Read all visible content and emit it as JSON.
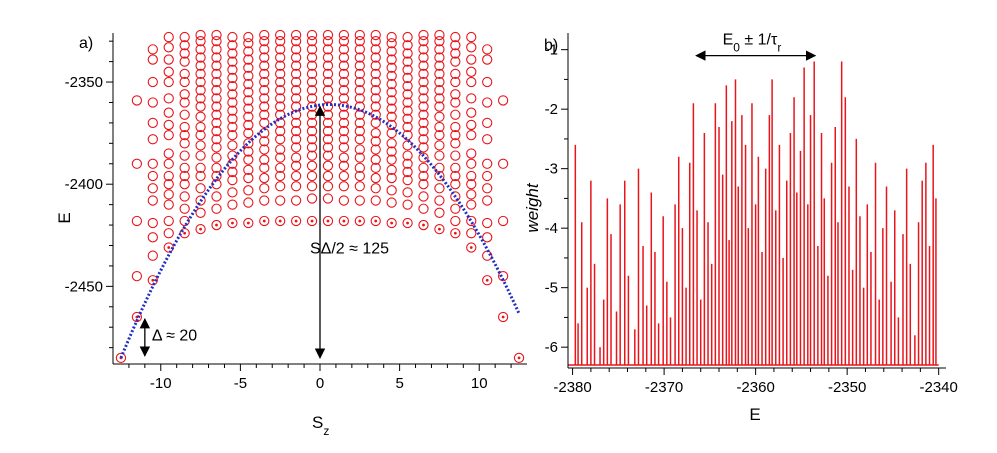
{
  "chart_data": [
    {
      "type": "scatter",
      "panel_label": "a)",
      "xlabel": "S",
      "xlabel_sub": "z",
      "ylabel": "E",
      "xlim": [
        -13,
        13
      ],
      "ylim": [
        -2488,
        -2326
      ],
      "xticks": [
        -10,
        -5,
        0,
        5,
        10
      ],
      "yticks": [
        -2350,
        -2400,
        -2450
      ],
      "grid": false,
      "colors": {
        "markers": "#e8151b",
        "curve": "#1f2fc4"
      },
      "ground_states": [
        {
          "Sz": -12.5,
          "E": -2485
        },
        {
          "Sz": -11.5,
          "E": -2465
        },
        {
          "Sz": -10.5,
          "E": -2447
        },
        {
          "Sz": -9.5,
          "E": -2431
        },
        {
          "Sz": -8.5,
          "E": -2424
        },
        {
          "Sz": -7.5,
          "E": -2422
        },
        {
          "Sz": -6.5,
          "E": -2420
        },
        {
          "Sz": -5.5,
          "E": -2419
        },
        {
          "Sz": -4.5,
          "E": -2419
        },
        {
          "Sz": -3.5,
          "E": -2418
        },
        {
          "Sz": -2.5,
          "E": -2418
        },
        {
          "Sz": -1.5,
          "E": -2418
        },
        {
          "Sz": -0.5,
          "E": -2418
        },
        {
          "Sz": 0.5,
          "E": -2418
        },
        {
          "Sz": 1.5,
          "E": -2418
        },
        {
          "Sz": 2.5,
          "E": -2418
        },
        {
          "Sz": 3.5,
          "E": -2418
        },
        {
          "Sz": 4.5,
          "E": -2419
        },
        {
          "Sz": 5.5,
          "E": -2419
        },
        {
          "Sz": 6.5,
          "E": -2420
        },
        {
          "Sz": 7.5,
          "E": -2422
        },
        {
          "Sz": 8.5,
          "E": -2424
        },
        {
          "Sz": 9.5,
          "E": -2431
        },
        {
          "Sz": 10.5,
          "E": -2447
        },
        {
          "Sz": 11.5,
          "E": -2465
        },
        {
          "Sz": 12.5,
          "E": -2485
        }
      ],
      "levels_per_column": [
        {
          "Sz": -12.5,
          "E": [
            -2485
          ]
        },
        {
          "Sz": -11.5,
          "E": [
            -2465,
            -2445,
            -2418,
            -2390,
            -2359
          ]
        },
        {
          "Sz": -10.5,
          "E": [
            -2447,
            -2435,
            -2426,
            -2419,
            -2408,
            -2402,
            -2396,
            -2390,
            -2378,
            -2370,
            -2360,
            -2350,
            -2339,
            -2334
          ]
        },
        {
          "Sz": -9.5,
          "E": [
            -2431,
            -2424,
            -2418,
            -2410,
            -2405,
            -2400,
            -2396,
            -2390,
            -2385,
            -2376,
            -2371,
            -2365,
            -2358,
            -2350,
            -2345,
            -2339,
            -2333,
            -2328
          ]
        },
        {
          "Sz": -8.5,
          "E": [
            -2424,
            -2418,
            -2412,
            -2406,
            -2400,
            -2396,
            -2392,
            -2386,
            -2380,
            -2376,
            -2372,
            -2366,
            -2360,
            -2356,
            -2350,
            -2346,
            -2340,
            -2336,
            -2332,
            -2328
          ]
        },
        {
          "Sz": -7.5,
          "E": [
            -2422,
            -2414,
            -2408,
            -2402,
            -2396,
            -2392,
            -2386,
            -2381,
            -2376,
            -2372,
            -2367,
            -2362,
            -2358,
            -2354,
            -2350,
            -2346,
            -2342,
            -2338,
            -2334,
            -2330,
            -2327
          ]
        },
        {
          "Sz": -6.5,
          "E": [
            -2420,
            -2412,
            -2406,
            -2400,
            -2396,
            -2392,
            -2387,
            -2382,
            -2378,
            -2374,
            -2370,
            -2366,
            -2362,
            -2358,
            -2354,
            -2350,
            -2346,
            -2342,
            -2338,
            -2334,
            -2330,
            -2327
          ]
        },
        {
          "Sz": -5.5,
          "E": [
            -2419,
            -2410,
            -2404,
            -2398,
            -2394,
            -2390,
            -2386,
            -2381,
            -2376,
            -2372,
            -2368,
            -2364,
            -2360,
            -2356,
            -2352,
            -2348,
            -2344,
            -2340,
            -2336,
            -2332,
            -2328
          ]
        },
        {
          "Sz": -4.5,
          "E": [
            -2419,
            -2409,
            -2403,
            -2397,
            -2393,
            -2388,
            -2384,
            -2380,
            -2375,
            -2371,
            -2367,
            -2363,
            -2359,
            -2355,
            -2351,
            -2347,
            -2343,
            -2339,
            -2335,
            -2331,
            -2328
          ]
        },
        {
          "Sz": -3.5,
          "E": [
            -2418,
            -2408,
            -2402,
            -2397,
            -2392,
            -2388,
            -2383,
            -2379,
            -2375,
            -2370,
            -2366,
            -2362,
            -2358,
            -2354,
            -2350,
            -2346,
            -2342,
            -2338,
            -2334,
            -2330,
            -2327
          ]
        },
        {
          "Sz": -2.5,
          "E": [
            -2418,
            -2408,
            -2401,
            -2396,
            -2392,
            -2387,
            -2383,
            -2378,
            -2374,
            -2370,
            -2366,
            -2362,
            -2358,
            -2354,
            -2350,
            -2346,
            -2342,
            -2338,
            -2334,
            -2330,
            -2327
          ]
        },
        {
          "Sz": -1.5,
          "E": [
            -2418,
            -2408,
            -2401,
            -2396,
            -2391,
            -2387,
            -2382,
            -2378,
            -2374,
            -2370,
            -2366,
            -2362,
            -2358,
            -2354,
            -2350,
            -2346,
            -2342,
            -2338,
            -2334,
            -2330,
            -2327
          ]
        },
        {
          "Sz": -0.5,
          "E": [
            -2418,
            -2407,
            -2401,
            -2396,
            -2391,
            -2386,
            -2382,
            -2378,
            -2374,
            -2370,
            -2366,
            -2362,
            -2358,
            -2354,
            -2350,
            -2346,
            -2342,
            -2338,
            -2334,
            -2330,
            -2327
          ]
        },
        {
          "Sz": 0.5,
          "E": [
            -2418,
            -2407,
            -2401,
            -2396,
            -2391,
            -2386,
            -2382,
            -2378,
            -2374,
            -2370,
            -2366,
            -2362,
            -2358,
            -2354,
            -2350,
            -2346,
            -2342,
            -2338,
            -2334,
            -2330,
            -2327
          ]
        },
        {
          "Sz": 1.5,
          "E": [
            -2418,
            -2408,
            -2401,
            -2396,
            -2391,
            -2387,
            -2382,
            -2378,
            -2374,
            -2370,
            -2366,
            -2362,
            -2358,
            -2354,
            -2350,
            -2346,
            -2342,
            -2338,
            -2334,
            -2330,
            -2327
          ]
        },
        {
          "Sz": 2.5,
          "E": [
            -2418,
            -2408,
            -2401,
            -2396,
            -2392,
            -2387,
            -2383,
            -2378,
            -2374,
            -2370,
            -2366,
            -2362,
            -2358,
            -2354,
            -2350,
            -2346,
            -2342,
            -2338,
            -2334,
            -2330,
            -2327
          ]
        },
        {
          "Sz": 3.5,
          "E": [
            -2418,
            -2408,
            -2402,
            -2397,
            -2392,
            -2388,
            -2383,
            -2379,
            -2375,
            -2370,
            -2366,
            -2362,
            -2358,
            -2354,
            -2350,
            -2346,
            -2342,
            -2338,
            -2334,
            -2330,
            -2327
          ]
        },
        {
          "Sz": 4.5,
          "E": [
            -2419,
            -2409,
            -2403,
            -2397,
            -2393,
            -2388,
            -2384,
            -2380,
            -2375,
            -2371,
            -2367,
            -2363,
            -2359,
            -2355,
            -2351,
            -2347,
            -2343,
            -2339,
            -2335,
            -2331,
            -2328
          ]
        },
        {
          "Sz": 5.5,
          "E": [
            -2419,
            -2410,
            -2404,
            -2398,
            -2394,
            -2390,
            -2386,
            -2381,
            -2376,
            -2372,
            -2368,
            -2364,
            -2360,
            -2356,
            -2352,
            -2348,
            -2344,
            -2340,
            -2336,
            -2332,
            -2328
          ]
        },
        {
          "Sz": 6.5,
          "E": [
            -2420,
            -2412,
            -2406,
            -2400,
            -2396,
            -2392,
            -2387,
            -2382,
            -2378,
            -2374,
            -2370,
            -2366,
            -2362,
            -2358,
            -2354,
            -2350,
            -2346,
            -2342,
            -2338,
            -2334,
            -2330,
            -2327
          ]
        },
        {
          "Sz": 7.5,
          "E": [
            -2422,
            -2414,
            -2408,
            -2402,
            -2396,
            -2392,
            -2386,
            -2381,
            -2376,
            -2372,
            -2367,
            -2362,
            -2358,
            -2354,
            -2350,
            -2346,
            -2342,
            -2338,
            -2334,
            -2330,
            -2327
          ]
        },
        {
          "Sz": 8.5,
          "E": [
            -2424,
            -2418,
            -2412,
            -2406,
            -2400,
            -2396,
            -2392,
            -2386,
            -2380,
            -2376,
            -2372,
            -2366,
            -2360,
            -2356,
            -2350,
            -2346,
            -2340,
            -2336,
            -2332,
            -2328
          ]
        },
        {
          "Sz": 9.5,
          "E": [
            -2431,
            -2424,
            -2418,
            -2410,
            -2405,
            -2400,
            -2396,
            -2390,
            -2385,
            -2376,
            -2371,
            -2365,
            -2358,
            -2350,
            -2345,
            -2339,
            -2333,
            -2328
          ]
        },
        {
          "Sz": 10.5,
          "E": [
            -2447,
            -2435,
            -2426,
            -2419,
            -2408,
            -2402,
            -2396,
            -2390,
            -2378,
            -2370,
            -2360,
            -2350,
            -2339,
            -2334
          ]
        },
        {
          "Sz": 11.5,
          "E": [
            -2465,
            -2445,
            -2418,
            -2390,
            -2359
          ]
        },
        {
          "Sz": 12.5,
          "E": [
            -2485
          ]
        }
      ],
      "fit_curve": {
        "vertex_Sz": 0.6,
        "vertex_E": -2361,
        "Sz_range": [
          -12.5,
          12.5
        ]
      },
      "annotations": [
        {
          "text": "SΔ/2 ≈ 125",
          "arrow_Sz": 0,
          "arrow_E": [
            -2361,
            -2486
          ]
        },
        {
          "text": "Δ ≈ 20",
          "arrow_Sz": -11.0,
          "arrow_E": [
            -2465,
            -2485
          ]
        }
      ]
    },
    {
      "type": "bar",
      "panel_label": "b)",
      "xlabel": "E",
      "ylabel": "weight",
      "xlim": [
        -2380.5,
        -2339.2
      ],
      "ylim": [
        -6.35,
        -0.72
      ],
      "baseline": -6.3,
      "xticks": [
        -2380,
        -2370,
        -2360,
        -2350,
        -2340
      ],
      "yticks": [
        -1,
        -2,
        -3,
        -4,
        -5,
        -6
      ],
      "grid": false,
      "colors": {
        "bars": "#e8151b"
      },
      "annotation": {
        "text": "E0 ± 1/τr",
        "arrow_E": [
          -2366.5,
          -2353.5
        ],
        "arrow_weight": -1.1
      },
      "peaks": [
        [
          -2379.7,
          -2.6
        ],
        [
          -2379.4,
          -5.6
        ],
        [
          -2379.0,
          -3.9
        ],
        [
          -2378.4,
          -5.0
        ],
        [
          -2378.0,
          -3.2
        ],
        [
          -2377.6,
          -4.6
        ],
        [
          -2377.0,
          -6.0
        ],
        [
          -2376.6,
          -5.2
        ],
        [
          -2376.2,
          -3.5
        ],
        [
          -2375.8,
          -4.1
        ],
        [
          -2375.2,
          -5.4
        ],
        [
          -2374.8,
          -3.6
        ],
        [
          -2374.3,
          -3.2
        ],
        [
          -2373.9,
          -4.8
        ],
        [
          -2373.2,
          -5.7
        ],
        [
          -2372.8,
          -3.0
        ],
        [
          -2372.3,
          -4.3
        ],
        [
          -2371.9,
          -5.3
        ],
        [
          -2371.4,
          -3.4
        ],
        [
          -2371.0,
          -4.4
        ],
        [
          -2370.6,
          -5.6
        ],
        [
          -2370.1,
          -3.8
        ],
        [
          -2369.7,
          -4.9
        ],
        [
          -2369.3,
          -5.5
        ],
        [
          -2368.8,
          -3.6
        ],
        [
          -2368.4,
          -2.8
        ],
        [
          -2368.0,
          -4.0
        ],
        [
          -2367.6,
          -5.0
        ],
        [
          -2367.2,
          -2.9
        ],
        [
          -2366.8,
          -1.9
        ],
        [
          -2366.4,
          -3.7
        ],
        [
          -2366.0,
          -5.2
        ],
        [
          -2365.6,
          -2.4
        ],
        [
          -2365.2,
          -3.9
        ],
        [
          -2364.8,
          -4.6
        ],
        [
          -2364.4,
          -1.9
        ],
        [
          -2364.0,
          -2.3
        ],
        [
          -2363.6,
          -3.1
        ],
        [
          -2363.2,
          -1.6
        ],
        [
          -2362.9,
          -4.2
        ],
        [
          -2362.6,
          -2.2
        ],
        [
          -2362.2,
          -1.5
        ],
        [
          -2361.9,
          -3.3
        ],
        [
          -2361.5,
          -2.1
        ],
        [
          -2361.1,
          -2.6
        ],
        [
          -2360.8,
          -4.0
        ],
        [
          -2360.4,
          -1.9
        ],
        [
          -2360.0,
          -3.6
        ],
        [
          -2359.7,
          -2.8
        ],
        [
          -2359.3,
          -4.4
        ],
        [
          -2358.9,
          -3.0
        ],
        [
          -2358.5,
          -2.1
        ],
        [
          -2358.2,
          -1.5
        ],
        [
          -2357.8,
          -3.7
        ],
        [
          -2357.4,
          -2.6
        ],
        [
          -2357.0,
          -4.5
        ],
        [
          -2356.6,
          -3.2
        ],
        [
          -2356.2,
          -2.4
        ],
        [
          -2355.8,
          -1.8
        ],
        [
          -2355.5,
          -3.4
        ],
        [
          -2355.1,
          -2.7
        ],
        [
          -2354.7,
          -1.3
        ],
        [
          -2354.3,
          -3.6
        ],
        [
          -2354.0,
          -2.1
        ],
        [
          -2353.6,
          -1.2
        ],
        [
          -2353.2,
          -4.3
        ],
        [
          -2352.8,
          -2.4
        ],
        [
          -2352.5,
          -3.5
        ],
        [
          -2352.1,
          -4.8
        ],
        [
          -2351.7,
          -2.9
        ],
        [
          -2351.3,
          -2.3
        ],
        [
          -2351.0,
          -3.9
        ],
        [
          -2350.6,
          -1.2
        ],
        [
          -2350.2,
          -1.8
        ],
        [
          -2349.8,
          -3.3
        ],
        [
          -2349.4,
          -4.7
        ],
        [
          -2349.0,
          -2.5
        ],
        [
          -2348.6,
          -3.8
        ],
        [
          -2348.2,
          -5.0
        ],
        [
          -2347.8,
          -3.6
        ],
        [
          -2347.4,
          -4.4
        ],
        [
          -2346.9,
          -2.9
        ],
        [
          -2346.5,
          -5.2
        ],
        [
          -2346.1,
          -4.0
        ],
        [
          -2345.7,
          -3.3
        ],
        [
          -2345.2,
          -4.9
        ],
        [
          -2344.8,
          -3.7
        ],
        [
          -2344.4,
          -5.5
        ],
        [
          -2343.9,
          -4.1
        ],
        [
          -2343.5,
          -3.0
        ],
        [
          -2343.1,
          -4.6
        ],
        [
          -2342.6,
          -5.8
        ],
        [
          -2342.2,
          -3.9
        ],
        [
          -2341.8,
          -3.2
        ],
        [
          -2341.4,
          -2.9
        ],
        [
          -2341.0,
          -4.3
        ],
        [
          -2340.6,
          -2.6
        ],
        [
          -2340.3,
          -3.5
        ]
      ]
    }
  ]
}
